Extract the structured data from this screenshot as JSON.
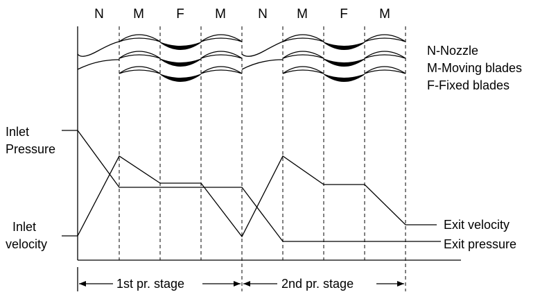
{
  "diagram": {
    "zones": [
      "N",
      "M",
      "F",
      "M",
      "N",
      "M",
      "F",
      "M"
    ],
    "legend": [
      "N-Nozzle",
      "M-Moving blades",
      "F-Fixed blades"
    ],
    "left_labels": {
      "pressure_line1": "Inlet",
      "pressure_line2": "Pressure",
      "velocity_line1": "Inlet",
      "velocity_line2": "velocity"
    },
    "right_labels": {
      "exit_velocity": "Exit velocity",
      "exit_pressure": "Exit pressure"
    },
    "stages": [
      "1st pr. stage",
      "2nd pr. stage"
    ]
  }
}
